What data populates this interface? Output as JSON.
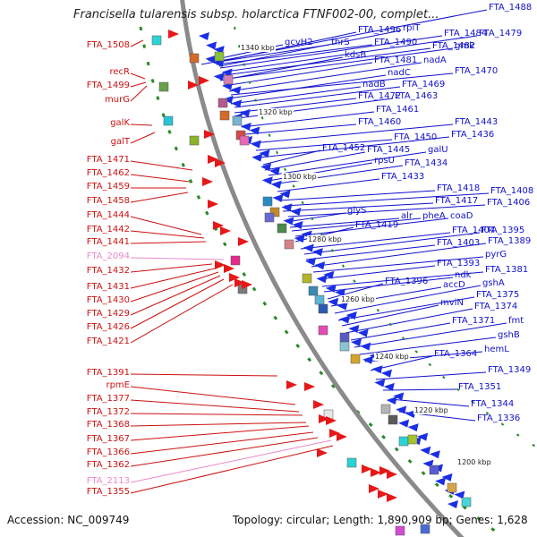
{
  "title": "Francisella tularensis subsp. holarctica FTNF002-00, complet...",
  "footer": {
    "accession": "Accession: NC_009749",
    "summary": "Topology: circular; Length: 1,890,909 bp; Genes: 1,628"
  },
  "colors": {
    "left_label": "#cc1111",
    "left_label_pseudo": "#ee88cc",
    "right_label": "#1010cc",
    "backbone": "#8a8a8a",
    "dotted_track": "#2a8a2a"
  },
  "kbp_ticks": [
    "1340 kbp",
    "1320 kbp",
    "1300 kbp",
    "1280 kbp",
    "1260 kbp",
    "1240 kbp",
    "1220 kbp",
    "1200 kbp"
  ],
  "left_labels": [
    {
      "text": "FTA_1508",
      "style": "r"
    },
    {
      "text": "recR",
      "style": "r"
    },
    {
      "text": "FTA_1499",
      "style": "r"
    },
    {
      "text": "murG",
      "style": "r"
    },
    {
      "text": "galK",
      "style": "r"
    },
    {
      "text": "galT",
      "style": "r"
    },
    {
      "text": "FTA_1471",
      "style": "r"
    },
    {
      "text": "FTA_1462",
      "style": "r"
    },
    {
      "text": "FTA_1459",
      "style": "r"
    },
    {
      "text": "FTA_1458",
      "style": "r"
    },
    {
      "text": "FTA_1444",
      "style": "r"
    },
    {
      "text": "FTA_1442",
      "style": "r"
    },
    {
      "text": "FTA_1441",
      "style": "r"
    },
    {
      "text": "FTA_2094",
      "style": "p"
    },
    {
      "text": "FTA_1432",
      "style": "r"
    },
    {
      "text": "FTA_1431",
      "style": "r"
    },
    {
      "text": "FTA_1430",
      "style": "r"
    },
    {
      "text": "FTA_1429",
      "style": "r"
    },
    {
      "text": "FTA_1426",
      "style": "r"
    },
    {
      "text": "FTA_1421",
      "style": "r"
    },
    {
      "text": "FTA_1391",
      "style": "r"
    },
    {
      "text": "rpmE",
      "style": "r"
    },
    {
      "text": "FTA_1377",
      "style": "r"
    },
    {
      "text": "FTA_1372",
      "style": "r"
    },
    {
      "text": "FTA_1368",
      "style": "r"
    },
    {
      "text": "FTA_1367",
      "style": "r"
    },
    {
      "text": "FTA_1366",
      "style": "r"
    },
    {
      "text": "FTA_1362",
      "style": "r"
    },
    {
      "text": "FTA_2113",
      "style": "p"
    },
    {
      "text": "FTA_1355",
      "style": "r"
    }
  ],
  "right_labels": [
    "FTA_1488",
    "rplT",
    "FTA_1496",
    "gcvH2",
    "thrS",
    "FTA_1490",
    "FTA_1484",
    "FTA_1479",
    "FTA_1482",
    "gmk",
    "kdsB",
    "FTA_1481",
    "nadA",
    "FTA_1470",
    "nadC",
    "nadB",
    "FTA_1469",
    "FTA_1472",
    "FTA_1463",
    "FTA_1461",
    "FTA_1460",
    "FTA_1443",
    "FTA_1450",
    "FTA_1436",
    "FTA_1452",
    "FTA_1445",
    "galU",
    "rpsU",
    "FTA_1434",
    "FTA_1433",
    "FTA_1418",
    "FTA_1408",
    "FTA_1417",
    "FTA_1406",
    "glyS",
    "alr",
    "pheA",
    "coaD",
    "FTA_1419",
    "FTA_1404",
    "FTA_1395",
    "FTA_1403",
    "FTA_1389",
    "pyrG",
    "FTA_1393",
    "FTA_1381",
    "ndk",
    "FTA_1396",
    "accD",
    "gshA",
    "FTA_1375",
    "mviN",
    "FTA_1374",
    "FTA_1371",
    "fmt",
    "gshB",
    "hemL",
    "FTA_1364",
    "FTA_1349",
    "FTA_1351",
    "FTA_1344",
    "FTA_1336"
  ]
}
